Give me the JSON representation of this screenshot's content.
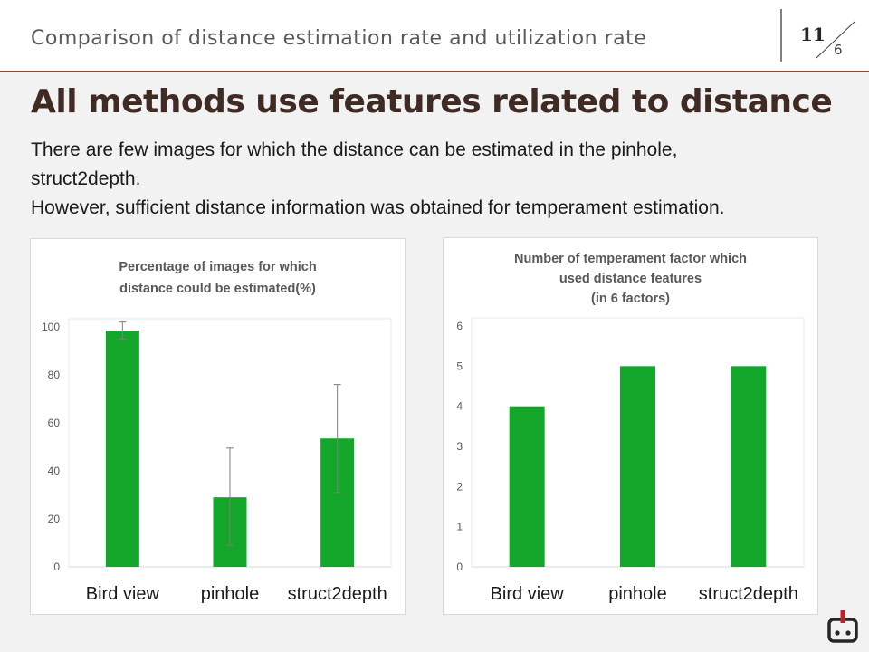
{
  "header": {
    "title": "Comparison of distance estimation rate and utilization rate",
    "page_current": "11",
    "page_total": "6"
  },
  "headline": "All methods use features related to distance",
  "body": {
    "lines": [
      "There are few images for which the distance can be estimated in the pinhole,",
      "struct2depth.",
      "However, sufficient distance information was obtained for temperament estimation."
    ]
  },
  "colors": {
    "bar": "#13a62a",
    "header_rule": "#8b4a3a",
    "headline": "#3f2b24",
    "logo": "#c0202a"
  },
  "chart_data": [
    {
      "type": "bar",
      "title_lines": [
        "Percentage of images for which",
        "distance could be estimated(%)"
      ],
      "categories": [
        "Bird view",
        "pinhole",
        "struct2depth"
      ],
      "values": [
        98.5,
        29,
        53.5
      ],
      "error": [
        [
          95,
          102
        ],
        [
          9,
          49.5
        ],
        [
          31,
          76
        ]
      ],
      "ylim": [
        0,
        100
      ],
      "yticks": [
        "0",
        "20",
        "40",
        "60",
        "80",
        "100"
      ],
      "grid": false
    },
    {
      "type": "bar",
      "title_lines": [
        "Number of temperament factor which",
        "used distance features",
        "(in 6 factors)"
      ],
      "categories": [
        "Bird view",
        "pinhole",
        "struct2depth"
      ],
      "values": [
        4,
        5,
        5
      ],
      "ylim": [
        0,
        6
      ],
      "yticks": [
        "0",
        "1",
        "2",
        "3",
        "4",
        "5",
        "6"
      ],
      "grid": false
    }
  ],
  "logo": {
    "icon": "robot-icon"
  }
}
